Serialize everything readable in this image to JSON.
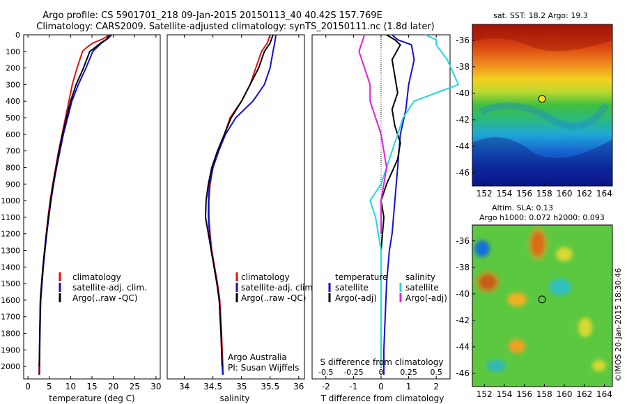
{
  "header": {
    "line1": "Argo profile: CS 5901701_218 09-Jan-2015 20150113_40 40.42S 157.769E",
    "line2": "Climatology: CARS2009. Satellite-adjusted climatology: synTS_20150111.nc (1.8d later)"
  },
  "colors": {
    "climatology": "#e01010",
    "satellite": "#1010d0",
    "argo": "#000000",
    "cyan": "#20d8e0",
    "magenta": "#e020e0"
  },
  "chart_data": [
    {
      "id": "temperature",
      "type": "line",
      "xlabel": "temperature (deg C)",
      "ylabel": "",
      "xlim": [
        -1,
        31
      ],
      "ylim": [
        2075,
        0
      ],
      "xticks": [
        0,
        5,
        10,
        15,
        20,
        25,
        30
      ],
      "yticks": [
        0,
        100,
        200,
        300,
        400,
        500,
        600,
        700,
        800,
        900,
        1000,
        1100,
        1200,
        1300,
        1400,
        1500,
        1600,
        1700,
        1800,
        1900,
        2000
      ],
      "legend": [
        "climatology",
        "satellite-adj. clim.",
        "Argo(..raw -QC)"
      ],
      "series": [
        {
          "name": "climatology",
          "color": "#e01010",
          "x": [
            19.2,
            17.5,
            15.2,
            13.8,
            12.8,
            11.5,
            10.4,
            9.6,
            8.8,
            8.0,
            7.2,
            6.5,
            5.8,
            5.2,
            4.7,
            4.3,
            3.9,
            3.5,
            3.2,
            2.9,
            2.8,
            2.7,
            2.6
          ],
          "y": [
            0,
            25,
            50,
            75,
            100,
            200,
            300,
            400,
            500,
            600,
            700,
            800,
            900,
            1000,
            1100,
            1200,
            1300,
            1400,
            1500,
            1600,
            1750,
            1900,
            2050
          ]
        },
        {
          "name": "satellite-adj. clim.",
          "color": "#1010d0",
          "x": [
            19.6,
            18.6,
            17.2,
            16.2,
            15.2,
            13.6,
            11.8,
            10.3,
            9.3,
            8.3,
            7.5,
            6.7,
            6.0,
            5.4,
            4.9,
            4.4,
            4.0,
            3.6,
            3.3,
            3.0,
            2.85,
            2.75,
            2.7
          ],
          "y": [
            0,
            25,
            50,
            75,
            100,
            200,
            300,
            400,
            500,
            600,
            700,
            800,
            900,
            1000,
            1100,
            1200,
            1300,
            1400,
            1500,
            1600,
            1750,
            1900,
            2050
          ]
        },
        {
          "name": "Argo(..raw -QC)",
          "color": "#000000",
          "x": [
            19.0,
            18.5,
            17.0,
            15.8,
            14.5,
            13.0,
            11.3,
            10.0,
            9.0,
            8.1,
            7.3,
            6.6,
            5.9,
            5.3,
            4.8,
            4.3,
            3.9,
            3.5,
            3.2,
            2.9,
            2.8,
            2.7,
            2.65
          ],
          "y": [
            0,
            25,
            50,
            75,
            100,
            200,
            300,
            400,
            500,
            600,
            700,
            800,
            900,
            1000,
            1100,
            1200,
            1300,
            1400,
            1500,
            1600,
            1750,
            1900,
            2000
          ]
        }
      ]
    },
    {
      "id": "salinity",
      "type": "line",
      "xlabel": "salinity",
      "ylabel": "",
      "xlim": [
        33.7,
        36.1
      ],
      "ylim": [
        2075,
        0
      ],
      "xticks": [
        34,
        34.5,
        35,
        35.5,
        36
      ],
      "legend": [
        "climatology",
        "satellite-adj. clim.",
        "Argo(..raw -QC)"
      ],
      "annotation": [
        "Argo Australia",
        "PI: Susan Wijffels"
      ],
      "series": [
        {
          "name": "climatology",
          "color": "#e01010",
          "x": [
            35.5,
            35.45,
            35.35,
            35.25,
            35.15,
            35.0,
            34.8,
            34.7,
            34.6,
            34.5,
            34.45,
            34.43,
            34.43,
            34.45,
            34.48,
            34.53,
            34.58,
            34.62,
            34.65,
            34.68
          ],
          "y": [
            0,
            50,
            100,
            200,
            300,
            400,
            500,
            600,
            700,
            800,
            900,
            1000,
            1100,
            1200,
            1300,
            1400,
            1500,
            1600,
            1800,
            2050
          ]
        },
        {
          "name": "satellite-adj. clim.",
          "color": "#1010d0",
          "x": [
            35.6,
            35.58,
            35.55,
            35.5,
            35.4,
            35.2,
            34.9,
            34.72,
            34.6,
            34.5,
            34.44,
            34.42,
            34.42,
            34.44,
            34.47,
            34.52,
            34.57,
            34.61,
            34.64,
            34.67
          ],
          "y": [
            0,
            50,
            100,
            200,
            300,
            400,
            500,
            600,
            700,
            800,
            900,
            1000,
            1100,
            1200,
            1300,
            1400,
            1500,
            1600,
            1800,
            2050
          ]
        },
        {
          "name": "Argo(..raw -QC)",
          "color": "#000000",
          "x": [
            35.55,
            35.5,
            35.4,
            35.3,
            35.15,
            35.0,
            34.82,
            34.7,
            34.58,
            34.48,
            34.42,
            34.38,
            34.37,
            34.42,
            34.47,
            34.52,
            34.57,
            34.61,
            34.64,
            34.66
          ],
          "y": [
            0,
            50,
            100,
            200,
            300,
            400,
            500,
            600,
            700,
            800,
            900,
            1000,
            1100,
            1200,
            1300,
            1400,
            1500,
            1600,
            1800,
            2000
          ]
        }
      ]
    },
    {
      "id": "difference",
      "type": "line",
      "xlabel": "T difference from climatology",
      "xlabel_top": "S difference from climatology",
      "xlim": [
        -2.5,
        2.5
      ],
      "ylim": [
        2075,
        0
      ],
      "xticks": [
        -2,
        -1,
        0,
        1,
        2
      ],
      "xticks_s": [
        -0.5,
        -0.25,
        0,
        0.25,
        0.5
      ],
      "xticks_s_labels": [
        "-0.5",
        "-0.25",
        "0",
        "0.25",
        "0.5"
      ],
      "legend_t": {
        "title": "temperature",
        "items": [
          "satellite",
          "Argo(-adj)"
        ]
      },
      "legend_s": {
        "title": "salinity",
        "items": [
          "satellite",
          "Argo(-adj)"
        ]
      },
      "series": [
        {
          "name": "T satellite",
          "color": "#1010d0",
          "x": [
            0.4,
            0.6,
            1.1,
            1.2,
            1.0,
            0.9,
            0.7,
            0.65,
            0.6,
            0.55,
            0.5,
            0.45,
            0.4,
            0.3,
            0.2,
            0.15,
            0.1,
            0.1
          ],
          "y": [
            0,
            30,
            60,
            150,
            300,
            450,
            600,
            700,
            800,
            900,
            1000,
            1100,
            1200,
            1300,
            1500,
            1700,
            1900,
            2050
          ]
        },
        {
          "name": "T Argo(-adj)",
          "color": "#000000",
          "x": [
            0.2,
            0.5,
            0.7,
            0.4,
            0.5,
            0.6,
            0.4,
            0.5,
            0.7,
            0.6,
            0.2,
            0.0,
            0.1,
            0.0,
            0.0,
            0.0,
            0.0
          ],
          "y": [
            0,
            30,
            60,
            150,
            250,
            350,
            450,
            550,
            650,
            750,
            900,
            1000,
            1100,
            1300,
            1500,
            1700,
            2000
          ]
        },
        {
          "name": "S satellite",
          "color": "#20d8e0",
          "x": [
            0.4,
            0.5,
            0.5,
            0.6,
            0.7,
            0.3,
            0.2,
            0.15,
            0.1,
            0.05,
            0.0,
            -0.1,
            -0.05,
            0.0,
            0.0,
            0.0,
            0.0
          ],
          "y": [
            0,
            30,
            60,
            150,
            300,
            400,
            500,
            600,
            700,
            800,
            900,
            1000,
            1100,
            1300,
            1500,
            1700,
            2000
          ]
        },
        {
          "name": "S Argo(-adj)",
          "color": "#e020e0",
          "x": [
            -0.15,
            -0.2,
            -0.15,
            -0.1,
            -0.1,
            0.0,
            0.05,
            0.0,
            0.0
          ],
          "y": [
            0,
            100,
            200,
            300,
            400,
            600,
            800,
            1000,
            1200
          ]
        }
      ]
    },
    {
      "id": "sst_map",
      "type": "heatmap",
      "title": "sat. SST: 18.2 Argo: 19.3",
      "xticks": [
        152,
        154,
        156,
        158,
        160,
        162,
        164
      ],
      "yticks": [
        -36,
        -38,
        -40,
        -42,
        -44,
        -46
      ],
      "xlim": [
        150.8,
        164.8
      ],
      "ylim": [
        -47,
        -34.8
      ],
      "marker": {
        "lon": 157.769,
        "lat": -40.42
      }
    },
    {
      "id": "sla_map",
      "type": "heatmap",
      "title": "Altim. SLA: 0.13",
      "subtitle": "Argo h1000: 0.072 h2000: 0.093",
      "xticks": [
        152,
        154,
        156,
        158,
        160,
        162,
        164
      ],
      "yticks": [
        -36,
        -38,
        -40,
        -42,
        -44,
        -46
      ],
      "xlim": [
        150.8,
        164.8
      ],
      "ylim": [
        -47,
        -34.8
      ],
      "marker": {
        "lon": 157.769,
        "lat": -40.42
      }
    }
  ],
  "side_credit": "©IMOS 20-Jan-2015 18:30:46"
}
